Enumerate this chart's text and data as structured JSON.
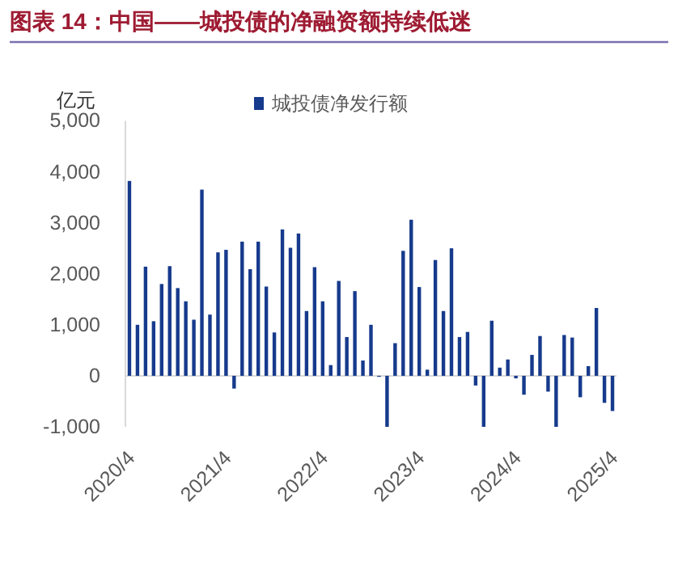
{
  "chart_data": {
    "type": "bar",
    "title": "图表 14：中国——城投债的净融资额持续低迷",
    "ylabel": "亿元",
    "categories": [
      "2020/4",
      null,
      null,
      null,
      null,
      null,
      null,
      null,
      null,
      null,
      null,
      null,
      "2021/4",
      null,
      null,
      null,
      null,
      null,
      null,
      null,
      null,
      null,
      null,
      null,
      "2022/4",
      null,
      null,
      null,
      null,
      null,
      null,
      null,
      null,
      null,
      null,
      null,
      "2023/4",
      null,
      null,
      null,
      null,
      null,
      null,
      null,
      null,
      null,
      null,
      null,
      "2024/4",
      null,
      null,
      null,
      null,
      null,
      null,
      null,
      null,
      null,
      null,
      null,
      "2025/4"
    ],
    "series": [
      {
        "name": "城投债净发行额",
        "color": "#163a8c",
        "values": [
          3820,
          1000,
          2140,
          1070,
          1800,
          2150,
          1720,
          1460,
          1100,
          3650,
          1200,
          2420,
          2470,
          -250,
          2630,
          2090,
          2630,
          1750,
          850,
          2870,
          2510,
          2790,
          1270,
          2130,
          1460,
          210,
          1860,
          760,
          1660,
          300,
          1000,
          -20,
          -1000,
          640,
          2450,
          3060,
          1740,
          120,
          2270,
          1270,
          2500,
          760,
          860,
          -190,
          -1000,
          1080,
          160,
          320,
          -50,
          -370,
          410,
          780,
          -310,
          -1000,
          800,
          750,
          -420,
          190,
          1330,
          -530,
          -690
        ]
      }
    ],
    "ylim": [
      -1000,
      5000
    ],
    "yticks": [
      {
        "value": -1000,
        "label": "-1,000"
      },
      0,
      {
        "value": 1000,
        "label": "1,000"
      },
      {
        "value": 2000,
        "label": "2,000"
      },
      {
        "value": 3000,
        "label": "3,000"
      },
      {
        "value": 4000,
        "label": "4,000"
      },
      {
        "value": 5000,
        "label": "5,000"
      }
    ],
    "ref_lines": [
      {
        "axis": "y",
        "value": 0,
        "color": "#d9d9d9"
      }
    ],
    "legend": "top",
    "grid": false
  }
}
